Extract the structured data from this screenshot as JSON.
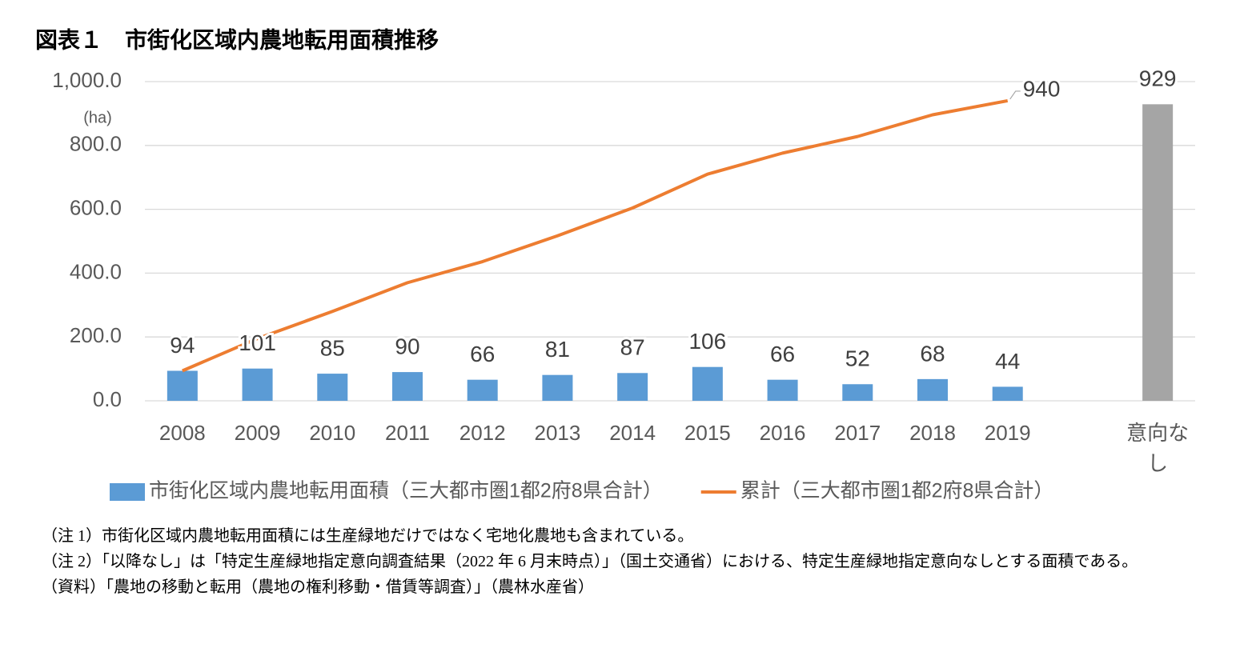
{
  "chart_data": {
    "type": "bar_line",
    "title": "図表１　市街化区域内農地転用面積推移",
    "y_unit": "(ha)",
    "categories": [
      "2008",
      "2009",
      "2010",
      "2011",
      "2012",
      "2013",
      "2014",
      "2015",
      "2016",
      "2017",
      "2018",
      "2019",
      null,
      "意向なし"
    ],
    "series": [
      {
        "name": "市街化区域内農地転用面積（三大都市圏1都2府8県合計）",
        "type": "bar",
        "color": "#5b9bd5",
        "point_colors": [
          "#5b9bd5",
          "#5b9bd5",
          "#5b9bd5",
          "#5b9bd5",
          "#5b9bd5",
          "#5b9bd5",
          "#5b9bd5",
          "#5b9bd5",
          "#5b9bd5",
          "#5b9bd5",
          "#5b9bd5",
          "#5b9bd5",
          "#5b9bd5",
          "#a5a5a5"
        ],
        "data_labels": "all",
        "values": [
          94,
          101,
          85,
          90,
          66,
          81,
          87,
          106,
          66,
          52,
          68,
          44,
          null,
          929
        ]
      },
      {
        "name": "累計（三大都市圏1都2府8県合計）",
        "type": "line",
        "color": "#ed7d31",
        "data_labels": "last",
        "values": [
          94,
          195,
          280,
          370,
          436,
          517,
          604,
          710,
          776,
          828,
          896,
          940,
          null,
          null
        ]
      }
    ],
    "ylim": [
      0,
      1000
    ],
    "yticks": [
      {
        "value": 0,
        "label": "0.0"
      },
      {
        "value": 200,
        "label": "200.0"
      },
      {
        "value": 400,
        "label": "400.0"
      },
      {
        "value": 600,
        "label": "600.0"
      },
      {
        "value": 800,
        "label": "800.0"
      },
      {
        "value": 1000,
        "label": "1,000.0"
      }
    ],
    "grid": true,
    "legend": "bottom",
    "notes": [
      "（注 1）市街化区域内農地転用面積には生産緑地だけではなく宅地化農地も含まれている。",
      "（注 2）「以降なし」は「特定生産緑地指定意向調査結果（2022 年 6 月末時点）」（国土交通省）における、特定生産緑地指定意向なしとする面積である。",
      "（資料）「農地の移動と転用（農地の権利移動・借賃等調査）」（農林水産省）"
    ]
  }
}
